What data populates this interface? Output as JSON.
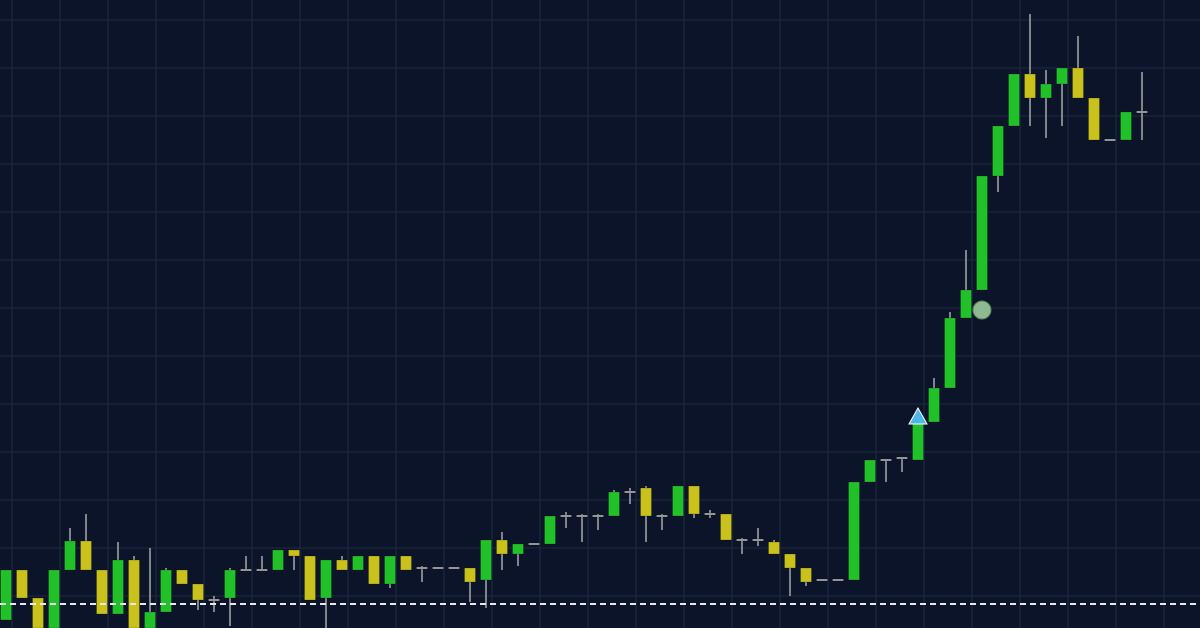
{
  "chart_data": {
    "type": "candlestick",
    "grid": true,
    "ylim": [
      0,
      628
    ],
    "reference_line": {
      "value": 24,
      "style": "dashed"
    },
    "colors": {
      "background": "#0b1428",
      "grid": "#1f2c45",
      "bullish": "#22c12a",
      "bearish": "#c9c21c",
      "wick": "#a8a8a8",
      "reference_line": "#e8e8e8",
      "triangle_marker": "#4fb6ea",
      "circle_marker": "#8fb98f"
    },
    "candles": [
      {
        "i": 0,
        "open": 8,
        "close": 58,
        "high": 58,
        "low": 8,
        "dir": "up"
      },
      {
        "i": 1,
        "open": 58,
        "close": 30,
        "high": 58,
        "low": 30,
        "dir": "down"
      },
      {
        "i": 2,
        "open": 30,
        "close": 0,
        "high": 30,
        "low": 0,
        "dir": "down"
      },
      {
        "i": 3,
        "open": 0,
        "close": 58,
        "high": 58,
        "low": 0,
        "dir": "up"
      },
      {
        "i": 4,
        "open": 58,
        "close": 87,
        "high": 100,
        "low": 58,
        "dir": "up"
      },
      {
        "i": 5,
        "open": 87,
        "close": 58,
        "high": 114,
        "low": 58,
        "dir": "down"
      },
      {
        "i": 6,
        "open": 58,
        "close": 14,
        "high": 58,
        "low": 14,
        "dir": "down"
      },
      {
        "i": 7,
        "open": 14,
        "close": 68,
        "high": 86,
        "low": 14,
        "dir": "up"
      },
      {
        "i": 8,
        "open": 68,
        "close": 0,
        "high": 72,
        "low": 0,
        "dir": "down"
      },
      {
        "i": 9,
        "open": 0,
        "close": 16,
        "high": 80,
        "low": 0,
        "dir": "up"
      },
      {
        "i": 10,
        "open": 16,
        "close": 58,
        "high": 60,
        "low": 16,
        "dir": "up"
      },
      {
        "i": 11,
        "open": 58,
        "close": 44,
        "high": 58,
        "low": 44,
        "dir": "down"
      },
      {
        "i": 12,
        "open": 44,
        "close": 28,
        "high": 44,
        "low": 18,
        "dir": "down"
      },
      {
        "i": 13,
        "open": 28,
        "close": 28,
        "high": 32,
        "low": 16,
        "dir": "flat"
      },
      {
        "i": 14,
        "open": 30,
        "close": 58,
        "high": 60,
        "low": 2,
        "dir": "up"
      },
      {
        "i": 15,
        "open": 58,
        "close": 58,
        "high": 72,
        "low": 58,
        "dir": "flat"
      },
      {
        "i": 16,
        "open": 58,
        "close": 58,
        "high": 72,
        "low": 58,
        "dir": "flat"
      },
      {
        "i": 17,
        "open": 58,
        "close": 78,
        "high": 78,
        "low": 58,
        "dir": "up"
      },
      {
        "i": 18,
        "open": 78,
        "close": 72,
        "high": 78,
        "low": 58,
        "dir": "down"
      },
      {
        "i": 19,
        "open": 72,
        "close": 28,
        "high": 72,
        "low": 28,
        "dir": "down"
      },
      {
        "i": 20,
        "open": 30,
        "close": 68,
        "high": 68,
        "low": 0,
        "dir": "up"
      },
      {
        "i": 21,
        "open": 68,
        "close": 58,
        "high": 72,
        "low": 58,
        "dir": "down"
      },
      {
        "i": 22,
        "open": 58,
        "close": 72,
        "high": 72,
        "low": 58,
        "dir": "up"
      },
      {
        "i": 23,
        "open": 72,
        "close": 44,
        "high": 72,
        "low": 44,
        "dir": "down"
      },
      {
        "i": 24,
        "open": 44,
        "close": 72,
        "high": 72,
        "low": 40,
        "dir": "up"
      },
      {
        "i": 25,
        "open": 72,
        "close": 58,
        "high": 72,
        "low": 58,
        "dir": "down"
      },
      {
        "i": 26,
        "open": 60,
        "close": 60,
        "high": 62,
        "low": 46,
        "dir": "flat"
      },
      {
        "i": 27,
        "open": 60,
        "close": 60,
        "high": 60,
        "low": 60,
        "dir": "flat"
      },
      {
        "i": 28,
        "open": 60,
        "close": 60,
        "high": 60,
        "low": 60,
        "dir": "flat"
      },
      {
        "i": 29,
        "open": 60,
        "close": 46,
        "high": 60,
        "low": 26,
        "dir": "down"
      },
      {
        "i": 30,
        "open": 48,
        "close": 88,
        "high": 88,
        "low": 20,
        "dir": "up"
      },
      {
        "i": 31,
        "open": 88,
        "close": 74,
        "high": 96,
        "low": 58,
        "dir": "down"
      },
      {
        "i": 32,
        "open": 74,
        "close": 84,
        "high": 84,
        "low": 62,
        "dir": "up"
      },
      {
        "i": 33,
        "open": 84,
        "close": 84,
        "high": 84,
        "low": 84,
        "dir": "flat"
      },
      {
        "i": 34,
        "open": 84,
        "close": 112,
        "high": 112,
        "low": 84,
        "dir": "up"
      },
      {
        "i": 35,
        "open": 112,
        "close": 112,
        "high": 116,
        "low": 100,
        "dir": "flat"
      },
      {
        "i": 36,
        "open": 112,
        "close": 112,
        "high": 114,
        "low": 86,
        "dir": "flat"
      },
      {
        "i": 37,
        "open": 112,
        "close": 112,
        "high": 114,
        "low": 98,
        "dir": "flat"
      },
      {
        "i": 38,
        "open": 112,
        "close": 136,
        "high": 138,
        "low": 112,
        "dir": "up"
      },
      {
        "i": 39,
        "open": 136,
        "close": 136,
        "high": 140,
        "low": 124,
        "dir": "flat"
      },
      {
        "i": 40,
        "open": 140,
        "close": 112,
        "high": 142,
        "low": 86,
        "dir": "down"
      },
      {
        "i": 41,
        "open": 112,
        "close": 112,
        "high": 114,
        "low": 98,
        "dir": "flat"
      },
      {
        "i": 42,
        "open": 112,
        "close": 142,
        "high": 142,
        "low": 112,
        "dir": "up"
      },
      {
        "i": 43,
        "open": 142,
        "close": 114,
        "high": 142,
        "low": 110,
        "dir": "down"
      },
      {
        "i": 44,
        "open": 114,
        "close": 114,
        "high": 118,
        "low": 110,
        "dir": "flat"
      },
      {
        "i": 45,
        "open": 114,
        "close": 88,
        "high": 114,
        "low": 88,
        "dir": "down"
      },
      {
        "i": 46,
        "open": 88,
        "close": 88,
        "high": 90,
        "low": 74,
        "dir": "flat"
      },
      {
        "i": 47,
        "open": 88,
        "close": 88,
        "high": 100,
        "low": 82,
        "dir": "flat"
      },
      {
        "i": 48,
        "open": 86,
        "close": 74,
        "high": 88,
        "low": 74,
        "dir": "down"
      },
      {
        "i": 49,
        "open": 74,
        "close": 60,
        "high": 74,
        "low": 32,
        "dir": "down"
      },
      {
        "i": 50,
        "open": 60,
        "close": 46,
        "high": 60,
        "low": 42,
        "dir": "down"
      },
      {
        "i": 51,
        "open": 48,
        "close": 48,
        "high": 48,
        "low": 48,
        "dir": "flat"
      },
      {
        "i": 52,
        "open": 48,
        "close": 48,
        "high": 48,
        "low": 48,
        "dir": "flat"
      },
      {
        "i": 53,
        "open": 48,
        "close": 146,
        "high": 146,
        "low": 48,
        "dir": "up"
      },
      {
        "i": 54,
        "open": 146,
        "close": 168,
        "high": 168,
        "low": 146,
        "dir": "up"
      },
      {
        "i": 55,
        "open": 168,
        "close": 168,
        "high": 168,
        "low": 146,
        "dir": "flat"
      },
      {
        "i": 56,
        "open": 168,
        "close": 170,
        "high": 170,
        "low": 156,
        "dir": "flat"
      },
      {
        "i": 57,
        "open": 168,
        "close": 206,
        "high": 220,
        "low": 168,
        "dir": "up"
      },
      {
        "i": 58,
        "open": 206,
        "close": 240,
        "high": 250,
        "low": 206,
        "dir": "up"
      },
      {
        "i": 59,
        "open": 240,
        "close": 310,
        "high": 316,
        "low": 240,
        "dir": "up"
      },
      {
        "i": 60,
        "open": 310,
        "close": 338,
        "high": 378,
        "low": 310,
        "dir": "up"
      },
      {
        "i": 61,
        "open": 338,
        "close": 452,
        "high": 452,
        "low": 338,
        "dir": "up"
      },
      {
        "i": 62,
        "open": 452,
        "close": 502,
        "high": 502,
        "low": 436,
        "dir": "up"
      },
      {
        "i": 63,
        "open": 502,
        "close": 554,
        "high": 554,
        "low": 502,
        "dir": "up"
      },
      {
        "i": 64,
        "open": 554,
        "close": 530,
        "high": 614,
        "low": 502,
        "dir": "down"
      },
      {
        "i": 65,
        "open": 530,
        "close": 544,
        "high": 558,
        "low": 490,
        "dir": "up"
      },
      {
        "i": 66,
        "open": 544,
        "close": 560,
        "high": 560,
        "low": 502,
        "dir": "up"
      },
      {
        "i": 67,
        "open": 560,
        "close": 530,
        "high": 592,
        "low": 530,
        "dir": "down"
      },
      {
        "i": 68,
        "open": 530,
        "close": 488,
        "high": 530,
        "low": 488,
        "dir": "down"
      },
      {
        "i": 69,
        "open": 488,
        "close": 488,
        "high": 488,
        "low": 488,
        "dir": "flat"
      },
      {
        "i": 70,
        "open": 488,
        "close": 516,
        "high": 516,
        "low": 488,
        "dir": "up"
      },
      {
        "i": 71,
        "open": 516,
        "close": 516,
        "high": 556,
        "low": 488,
        "dir": "flat"
      }
    ],
    "markers": [
      {
        "type": "triangle",
        "candle": 57,
        "value": 210
      },
      {
        "type": "circle",
        "candle": 61,
        "value": 318
      }
    ]
  }
}
